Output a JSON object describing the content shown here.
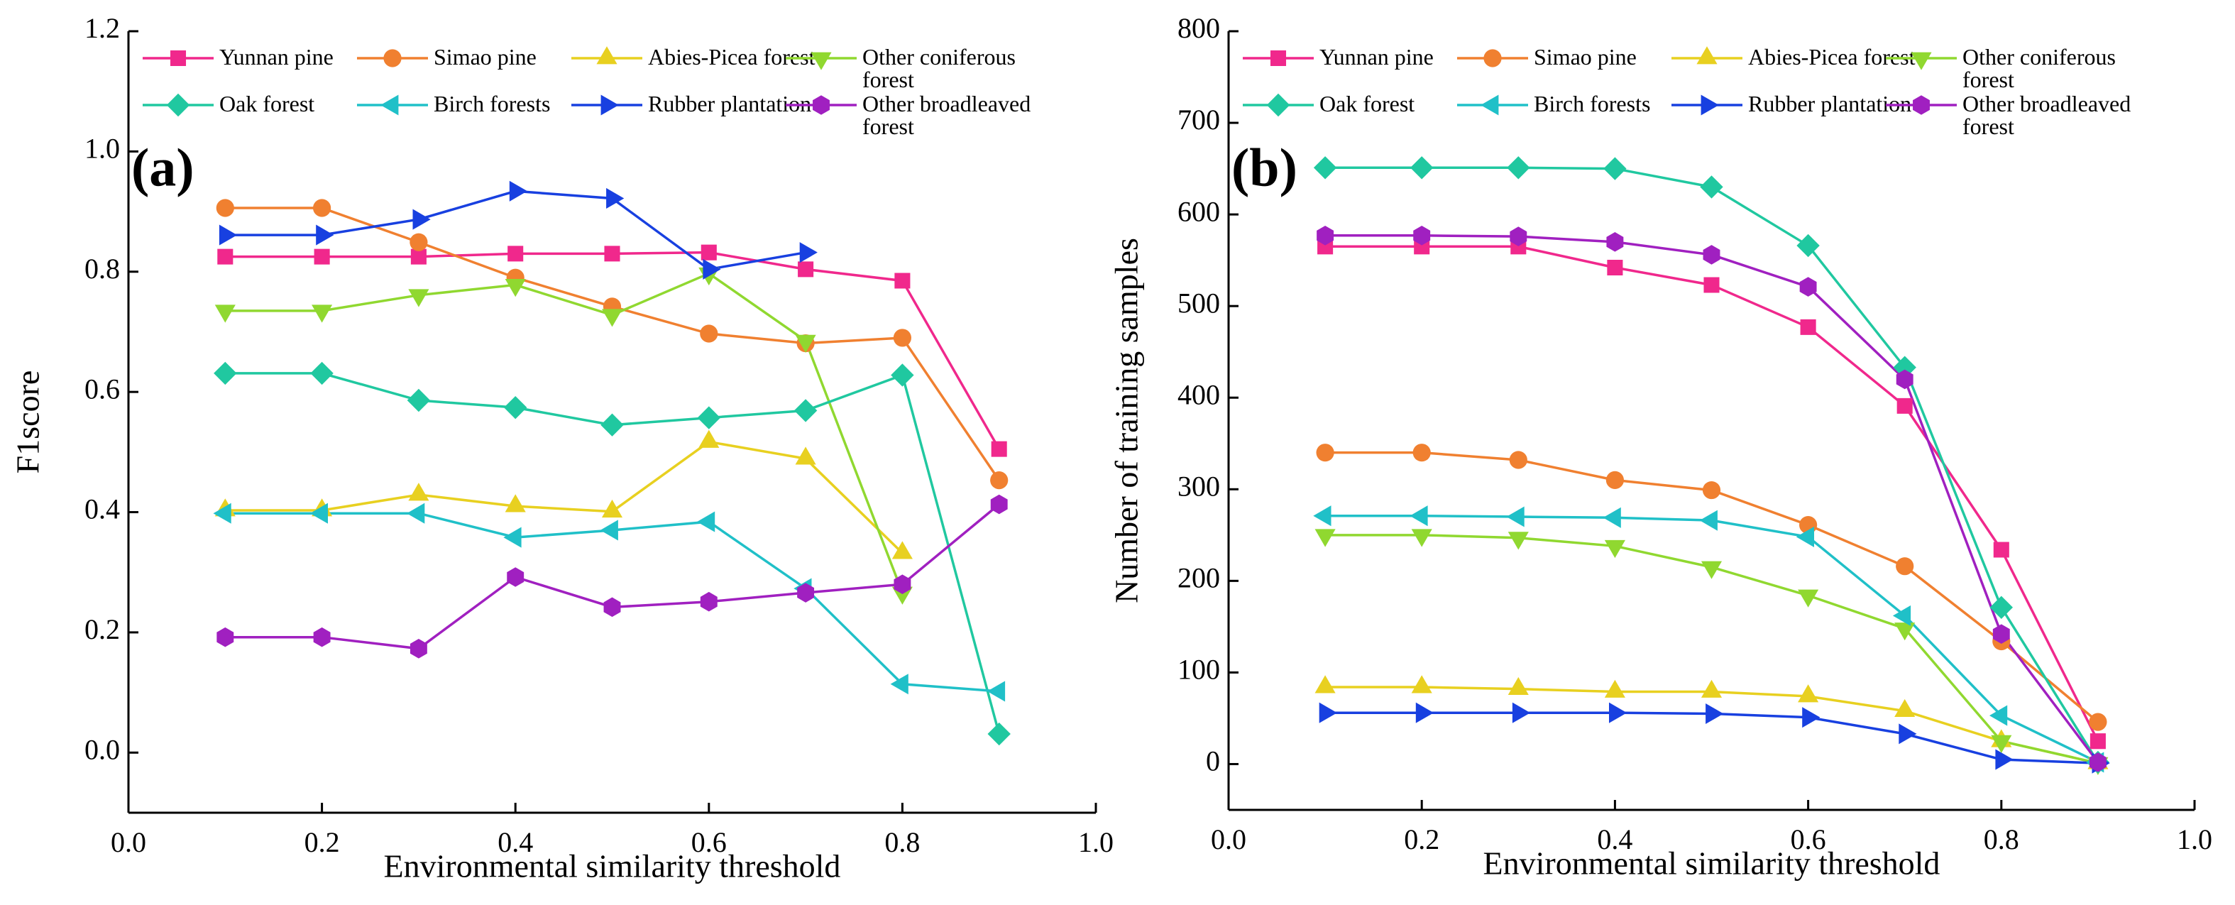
{
  "chart_data": [
    {
      "type": "line",
      "panel_label": "(a)",
      "ylabel": "F1score",
      "xlabel": "Environmental similarity threshold",
      "x": [
        0.1,
        0.2,
        0.3,
        0.4,
        0.5,
        0.6,
        0.7,
        0.8,
        0.9
      ],
      "xlim": [
        0,
        1
      ],
      "xticks": [
        {
          "value": 0,
          "label": "0.0"
        },
        0.2,
        0.4,
        0.6,
        0.8,
        {
          "value": 1,
          "label": "1.0"
        }
      ],
      "ylim": [
        -0.1,
        1.2
      ],
      "yticks": [
        {
          "value": 0,
          "label": "0.0"
        },
        0.2,
        0.4,
        0.6,
        0.8,
        {
          "value": 1,
          "label": "1.0"
        },
        1.2
      ],
      "series": [
        {
          "name": "Yunnan pine",
          "color": "#f0288c",
          "marker": "square",
          "values": [
            0.825,
            0.825,
            0.825,
            0.83,
            0.83,
            0.832,
            0.804,
            0.785,
            0.505
          ]
        },
        {
          "name": "Simao pine",
          "color": "#f08030",
          "marker": "circle",
          "values": [
            0.906,
            0.906,
            0.849,
            0.79,
            0.742,
            0.697,
            0.681,
            0.69,
            0.453
          ]
        },
        {
          "name": "Abies-Picea forest",
          "color": "#e8d020",
          "marker": "triangle-up",
          "values": [
            0.403,
            0.403,
            0.429,
            0.41,
            0.401,
            0.517,
            0.489,
            0.332,
            null
          ]
        },
        {
          "name": "Other coniferous forest",
          "color": "#90d830",
          "marker": "triangle-down",
          "values": [
            0.735,
            0.735,
            0.761,
            0.778,
            0.728,
            0.797,
            0.685,
            0.266,
            null
          ]
        },
        {
          "name": "Oak forest",
          "color": "#20c8a0",
          "marker": "diamond",
          "values": [
            0.631,
            0.631,
            0.586,
            0.574,
            0.545,
            0.557,
            0.569,
            0.628,
            0.031
          ]
        },
        {
          "name": "Birch forests",
          "color": "#20c0c8",
          "marker": "triangle-left",
          "values": [
            0.398,
            0.398,
            0.398,
            0.358,
            0.37,
            0.384,
            0.273,
            0.114,
            0.102
          ]
        },
        {
          "name": "Rubber plantation",
          "color": "#1840e0",
          "marker": "triangle-right",
          "values": [
            0.861,
            0.861,
            0.887,
            0.934,
            0.922,
            0.804,
            0.832,
            null,
            null
          ]
        },
        {
          "name": "Other broadleaved forest",
          "color": "#a020c0",
          "marker": "hexagon",
          "values": [
            0.192,
            0.192,
            0.173,
            0.292,
            0.242,
            0.251,
            0.266,
            0.28,
            0.413
          ]
        }
      ]
    },
    {
      "type": "line",
      "panel_label": "(b)",
      "ylabel": "Number of training samples",
      "xlabel": "Environmental similarity threshold",
      "x": [
        0.1,
        0.2,
        0.3,
        0.4,
        0.5,
        0.6,
        0.7,
        0.8,
        0.9
      ],
      "xlim": [
        0,
        1
      ],
      "xticks": [
        {
          "value": 0,
          "label": "0.0"
        },
        0.2,
        0.4,
        0.6,
        0.8,
        {
          "value": 1,
          "label": "1.0"
        }
      ],
      "ylim": [
        -50,
        800
      ],
      "yticks": [
        0,
        100,
        200,
        300,
        400,
        500,
        600,
        700,
        800
      ],
      "series": [
        {
          "name": "Yunnan pine",
          "color": "#f0288c",
          "marker": "square",
          "values": [
            565,
            565,
            565,
            542,
            523,
            477,
            391,
            234,
            25
          ]
        },
        {
          "name": "Simao pine",
          "color": "#f08030",
          "marker": "circle",
          "values": [
            340,
            340,
            332,
            310,
            299,
            261,
            216,
            134,
            46
          ]
        },
        {
          "name": "Abies-Picea forest",
          "color": "#e8d020",
          "marker": "triangle-up",
          "values": [
            84,
            84,
            82,
            79,
            79,
            74,
            58,
            25,
            1
          ]
        },
        {
          "name": "Other coniferous forest",
          "color": "#90d830",
          "marker": "triangle-down",
          "values": [
            250,
            250,
            247,
            238,
            215,
            184,
            148,
            25,
            1
          ]
        },
        {
          "name": "Oak forest",
          "color": "#20c8a0",
          "marker": "diamond",
          "values": [
            651,
            651,
            651,
            650,
            630,
            566,
            433,
            171,
            2
          ]
        },
        {
          "name": "Birch forests",
          "color": "#20c0c8",
          "marker": "triangle-left",
          "values": [
            271,
            271,
            270,
            269,
            266,
            248,
            162,
            53,
            2
          ]
        },
        {
          "name": "Rubber plantation",
          "color": "#1840e0",
          "marker": "triangle-right",
          "values": [
            56,
            56,
            56,
            56,
            55,
            51,
            33,
            5,
            1
          ]
        },
        {
          "name": "Other broadleaved forest",
          "color": "#a020c0",
          "marker": "hexagon",
          "values": [
            577,
            577,
            576,
            570,
            556,
            521,
            420,
            142,
            2
          ]
        }
      ]
    }
  ]
}
